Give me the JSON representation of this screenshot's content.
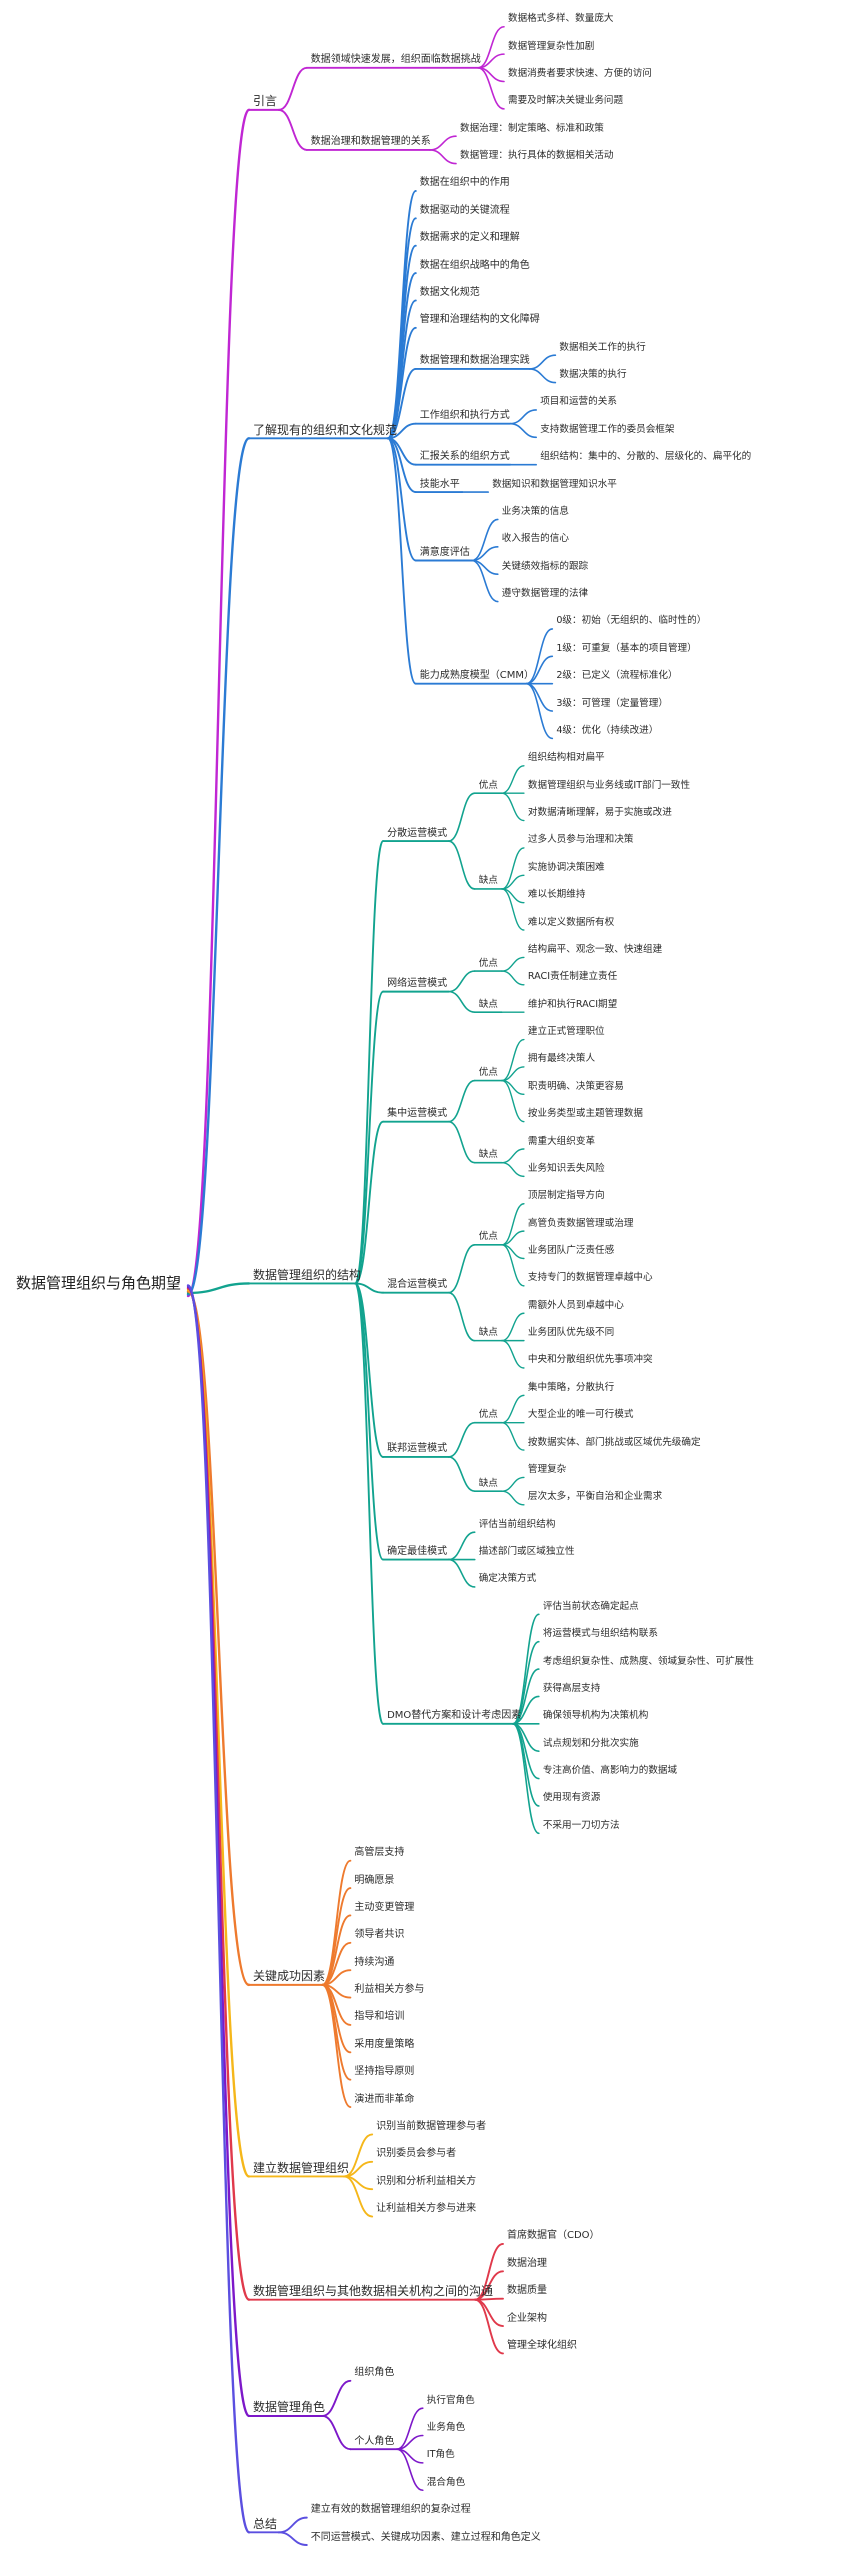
{
  "root": "数据管理组织与角色期望",
  "palette": [
    "#c026d3",
    "#2b7bd4",
    "#12a38f",
    "#ee7a2e",
    "#f5b71a",
    "#e0394b",
    "#7d18c9",
    "#5b4fe0"
  ],
  "branches": [
    {
      "label": "引言",
      "children": [
        {
          "label": "数据领域快速发展，组织面临数据挑战",
          "children": [
            {
              "label": "数据格式多样、数量庞大"
            },
            {
              "label": "数据管理复杂性加剧"
            },
            {
              "label": "数据消费者要求快速、方便的访问"
            },
            {
              "label": "需要及时解决关键业务问题"
            }
          ]
        },
        {
          "label": "数据治理和数据管理的关系",
          "children": [
            {
              "label": "数据治理：制定策略、标准和政策"
            },
            {
              "label": "数据管理：执行具体的数据相关活动"
            }
          ]
        }
      ]
    },
    {
      "label": "了解现有的组织和文化规范",
      "children": [
        {
          "label": "数据在组织中的作用"
        },
        {
          "label": "数据驱动的关键流程"
        },
        {
          "label": "数据需求的定义和理解"
        },
        {
          "label": "数据在组织战略中的角色"
        },
        {
          "label": "数据文化规范"
        },
        {
          "label": "管理和治理结构的文化障碍"
        },
        {
          "label": "数据管理和数据治理实践",
          "children": [
            {
              "label": "数据相关工作的执行"
            },
            {
              "label": "数据决策的执行"
            }
          ]
        },
        {
          "label": "工作组织和执行方式",
          "children": [
            {
              "label": "项目和运营的关系"
            },
            {
              "label": "支持数据管理工作的委员会框架"
            }
          ]
        },
        {
          "label": "汇报关系的组织方式",
          "children": [
            {
              "label": "组织结构：集中的、分散的、层级化的、扁平化的"
            }
          ]
        },
        {
          "label": "技能水平",
          "children": [
            {
              "label": "数据知识和数据管理知识水平"
            }
          ]
        },
        {
          "label": "满意度评估",
          "children": [
            {
              "label": "业务决策的信息"
            },
            {
              "label": "收入报告的信心"
            },
            {
              "label": "关键绩效指标的跟踪"
            },
            {
              "label": "遵守数据管理的法律"
            }
          ]
        },
        {
          "label": "能力成熟度模型（CMM）",
          "children": [
            {
              "label": "0级：初始（无组织的、临时性的）"
            },
            {
              "label": "1级：可重复（基本的项目管理）"
            },
            {
              "label": "2级：已定义（流程标准化）"
            },
            {
              "label": "3级：可管理（定量管理）"
            },
            {
              "label": "4级：优化（持续改进）"
            }
          ]
        }
      ]
    },
    {
      "label": "数据管理组织的结构",
      "children": [
        {
          "label": "分散运营模式",
          "children": [
            {
              "label": "优点",
              "children": [
                {
                  "label": "组织结构相对扁平"
                },
                {
                  "label": "数据管理组织与业务线或IT部门一致性"
                },
                {
                  "label": "对数据清晰理解，易于实施或改进"
                }
              ]
            },
            {
              "label": "缺点",
              "children": [
                {
                  "label": "过多人员参与治理和决策"
                },
                {
                  "label": "实施协调决策困难"
                },
                {
                  "label": "难以长期维持"
                },
                {
                  "label": "难以定义数据所有权"
                }
              ]
            }
          ]
        },
        {
          "label": "网络运营模式",
          "children": [
            {
              "label": "优点",
              "children": [
                {
                  "label": "结构扁平、观念一致、快速组建"
                },
                {
                  "label": "RACI责任制建立责任"
                }
              ]
            },
            {
              "label": "缺点",
              "children": [
                {
                  "label": "维护和执行RACI期望"
                }
              ]
            }
          ]
        },
        {
          "label": "集中运营模式",
          "children": [
            {
              "label": "优点",
              "children": [
                {
                  "label": "建立正式管理职位"
                },
                {
                  "label": "拥有最终决策人"
                },
                {
                  "label": "职责明确、决策更容易"
                },
                {
                  "label": "按业务类型或主题管理数据"
                }
              ]
            },
            {
              "label": "缺点",
              "children": [
                {
                  "label": "需重大组织变革"
                },
                {
                  "label": "业务知识丢失风险"
                }
              ]
            }
          ]
        },
        {
          "label": "混合运营模式",
          "children": [
            {
              "label": "优点",
              "children": [
                {
                  "label": "顶层制定指导方向"
                },
                {
                  "label": "高管负责数据管理或治理"
                },
                {
                  "label": "业务团队广泛责任感"
                },
                {
                  "label": "支持专门的数据管理卓越中心"
                }
              ]
            },
            {
              "label": "缺点",
              "children": [
                {
                  "label": "需额外人员到卓越中心"
                },
                {
                  "label": "业务团队优先级不同"
                },
                {
                  "label": "中央和分散组织优先事项冲突"
                }
              ]
            }
          ]
        },
        {
          "label": "联邦运营模式",
          "children": [
            {
              "label": "优点",
              "children": [
                {
                  "label": "集中策略，分散执行"
                },
                {
                  "label": "大型企业的唯一可行模式"
                },
                {
                  "label": "按数据实体、部门挑战或区域优先级确定"
                }
              ]
            },
            {
              "label": "缺点",
              "children": [
                {
                  "label": "管理复杂"
                },
                {
                  "label": "层次太多，平衡自治和企业需求"
                }
              ]
            }
          ]
        },
        {
          "label": "确定最佳模式",
          "children": [
            {
              "label": "评估当前组织结构"
            },
            {
              "label": "描述部门或区域独立性"
            },
            {
              "label": "确定决策方式"
            }
          ]
        },
        {
          "label": "DMO替代方案和设计考虑因素",
          "children": [
            {
              "label": "评估当前状态确定起点"
            },
            {
              "label": "将运营模式与组织结构联系"
            },
            {
              "label": "考虑组织复杂性、成熟度、领域复杂性、可扩展性"
            },
            {
              "label": "获得高层支持"
            },
            {
              "label": "确保领导机构为决策机构"
            },
            {
              "label": "试点规划和分批次实施"
            },
            {
              "label": "专注高价值、高影响力的数据域"
            },
            {
              "label": "使用现有资源"
            },
            {
              "label": "不采用一刀切方法"
            }
          ]
        }
      ]
    },
    {
      "label": "关键成功因素",
      "children": [
        {
          "label": "高管层支持"
        },
        {
          "label": "明确愿景"
        },
        {
          "label": "主动变更管理"
        },
        {
          "label": "领导者共识"
        },
        {
          "label": "持续沟通"
        },
        {
          "label": "利益相关方参与"
        },
        {
          "label": "指导和培训"
        },
        {
          "label": "采用度量策略"
        },
        {
          "label": "坚持指导原则"
        },
        {
          "label": "演进而非革命"
        }
      ]
    },
    {
      "label": "建立数据管理组织",
      "children": [
        {
          "label": "识别当前数据管理参与者"
        },
        {
          "label": "识别委员会参与者"
        },
        {
          "label": "识别和分析利益相关方"
        },
        {
          "label": "让利益相关方参与进来"
        }
      ]
    },
    {
      "label": "数据管理组织与其他数据相关机构之间的沟通",
      "children": [
        {
          "label": "首席数据官（CDO）"
        },
        {
          "label": "数据治理"
        },
        {
          "label": "数据质量"
        },
        {
          "label": "企业架构"
        },
        {
          "label": "管理全球化组织"
        }
      ]
    },
    {
      "label": "数据管理角色",
      "children": [
        {
          "label": "组织角色"
        },
        {
          "label": "个人角色",
          "children": [
            {
              "label": "执行官角色"
            },
            {
              "label": "业务角色"
            },
            {
              "label": "IT角色"
            },
            {
              "label": "混合角色"
            }
          ]
        }
      ]
    },
    {
      "label": "总结",
      "children": [
        {
          "label": "建立有效的数据管理组织的复杂过程"
        },
        {
          "label": "不同运营模式、关键成功因素、建立过程和角色定义"
        }
      ]
    }
  ]
}
